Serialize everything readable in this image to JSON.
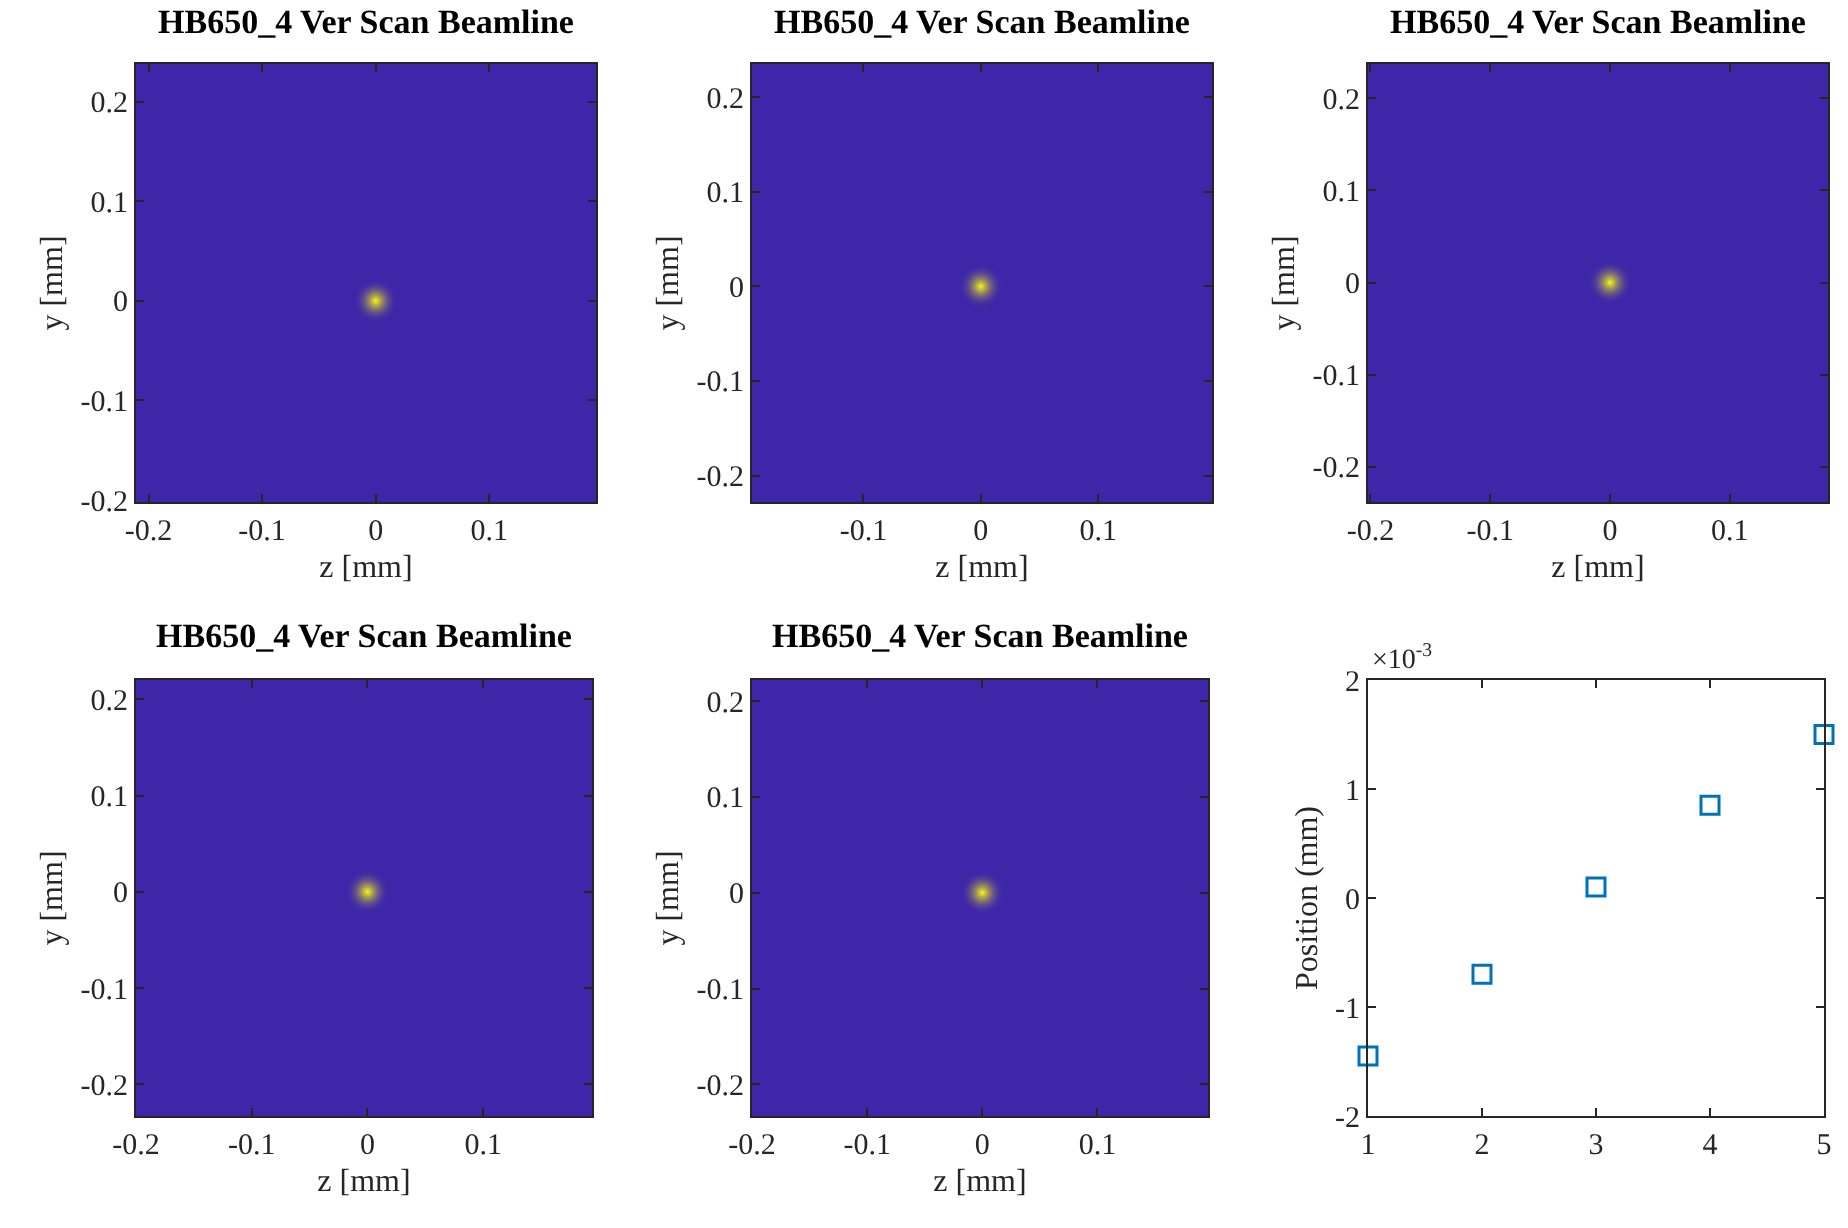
{
  "chart_data": [
    {
      "type": "scatter",
      "title": "HB650_4 Ver Scan Beamline",
      "xlabel": "z [mm]",
      "ylabel": "y [mm]",
      "marker": "circle",
      "x": [
        0
      ],
      "xlim": [
        -0.211,
        0.194
      ],
      "ylim": [
        -0.202,
        0.238
      ],
      "xticks": [
        -0.2,
        -0.1,
        0,
        0.1
      ],
      "yticks": [
        -0.2,
        -0.1,
        0,
        0.1,
        0.2
      ],
      "series": [
        {
          "color": "#f9fb0e",
          "values": [
            0
          ]
        }
      ]
    },
    {
      "type": "scatter",
      "title": "HB650_4 Ver Scan Beamline",
      "xlabel": "z [mm]",
      "ylabel": "y [mm]",
      "marker": "circle",
      "x": [
        0
      ],
      "xlim": [
        -0.195,
        0.197
      ],
      "ylim": [
        -0.228,
        0.235
      ],
      "xticks": [
        -0.1,
        0,
        0.1
      ],
      "yticks": [
        -0.2,
        -0.1,
        0,
        0.1,
        0.2
      ],
      "series": [
        {
          "color": "#f9fb0e",
          "values": [
            0
          ]
        }
      ]
    },
    {
      "type": "scatter",
      "title": "HB650_4 Ver Scan Beamline",
      "xlabel": "z [mm]",
      "ylabel": "y [mm]",
      "marker": "circle",
      "x": [
        0
      ],
      "xlim": [
        -0.202,
        0.182
      ],
      "ylim": [
        -0.238,
        0.237
      ],
      "xticks": [
        -0.2,
        -0.1,
        0,
        0.1
      ],
      "yticks": [
        -0.2,
        -0.1,
        0,
        0.1,
        0.2
      ],
      "series": [
        {
          "color": "#f9fb0e",
          "values": [
            0
          ]
        }
      ]
    },
    {
      "type": "scatter",
      "title": "HB650_4 Ver Scan Beamline",
      "xlabel": "z [mm]",
      "ylabel": "y [mm]",
      "marker": "circle",
      "x": [
        0
      ],
      "xlim": [
        -0.2,
        0.194
      ],
      "ylim": [
        -0.233,
        0.22
      ],
      "xticks": [
        -0.2,
        -0.1,
        0,
        0.1
      ],
      "yticks": [
        -0.2,
        -0.1,
        0,
        0.1,
        0.2
      ],
      "series": [
        {
          "color": "#f9fb0e",
          "values": [
            0
          ]
        }
      ]
    },
    {
      "type": "scatter",
      "title": "HB650_4 Ver Scan Beamline",
      "xlabel": "z [mm]",
      "ylabel": "y [mm]",
      "marker": "circle",
      "x": [
        0
      ],
      "xlim": [
        -0.2,
        0.196
      ],
      "ylim": [
        -0.233,
        0.222
      ],
      "xticks": [
        -0.2,
        -0.1,
        0,
        0.1
      ],
      "yticks": [
        -0.2,
        -0.1,
        0,
        0.1,
        0.2
      ],
      "series": [
        {
          "color": "#f9fb0e",
          "values": [
            0
          ]
        }
      ]
    },
    {
      "type": "scatter",
      "ylabel": "Position (mm)",
      "annotations": [
        "×10$^{-3}$"
      ],
      "marker": "square",
      "x": [
        1,
        2,
        3,
        4,
        5
      ],
      "xlim": [
        1,
        5
      ],
      "xticks": [
        1,
        2,
        3,
        4,
        5
      ],
      "ylim": [
        -2,
        2
      ],
      "yticks": [
        -2,
        -1,
        0,
        1,
        2
      ],
      "series": [
        {
          "color": "#0072bd",
          "values": [
            -1.45,
            -0.7,
            0.1,
            0.85,
            1.5
          ]
        }
      ]
    }
  ]
}
